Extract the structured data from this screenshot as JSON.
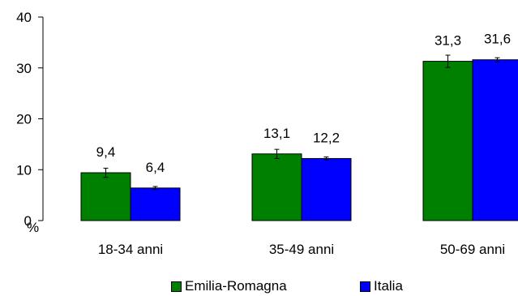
{
  "chart_data": {
    "type": "bar",
    "title": "",
    "xlabel": "",
    "ylabel": "%",
    "ylim": [
      0,
      40
    ],
    "yticks": [
      "0",
      "10",
      "20",
      "30",
      "40"
    ],
    "categories": [
      "18-34 anni",
      "35-49 anni",
      "50-69 anni"
    ],
    "series": [
      {
        "name": "Emilia-Romagna",
        "color": "#008000",
        "values": [
          9.4,
          13.1,
          31.3
        ],
        "labels": [
          "9,4",
          "13,1",
          "31,3"
        ],
        "error": [
          0.9,
          0.9,
          1.2
        ]
      },
      {
        "name": "Italia",
        "color": "#0000ff",
        "values": [
          6.4,
          12.2,
          31.6
        ],
        "labels": [
          "6,4",
          "12,2",
          "31,6"
        ],
        "error": [
          0.3,
          0.3,
          0.4
        ]
      }
    ],
    "grid": false,
    "legend_position": "bottom"
  }
}
